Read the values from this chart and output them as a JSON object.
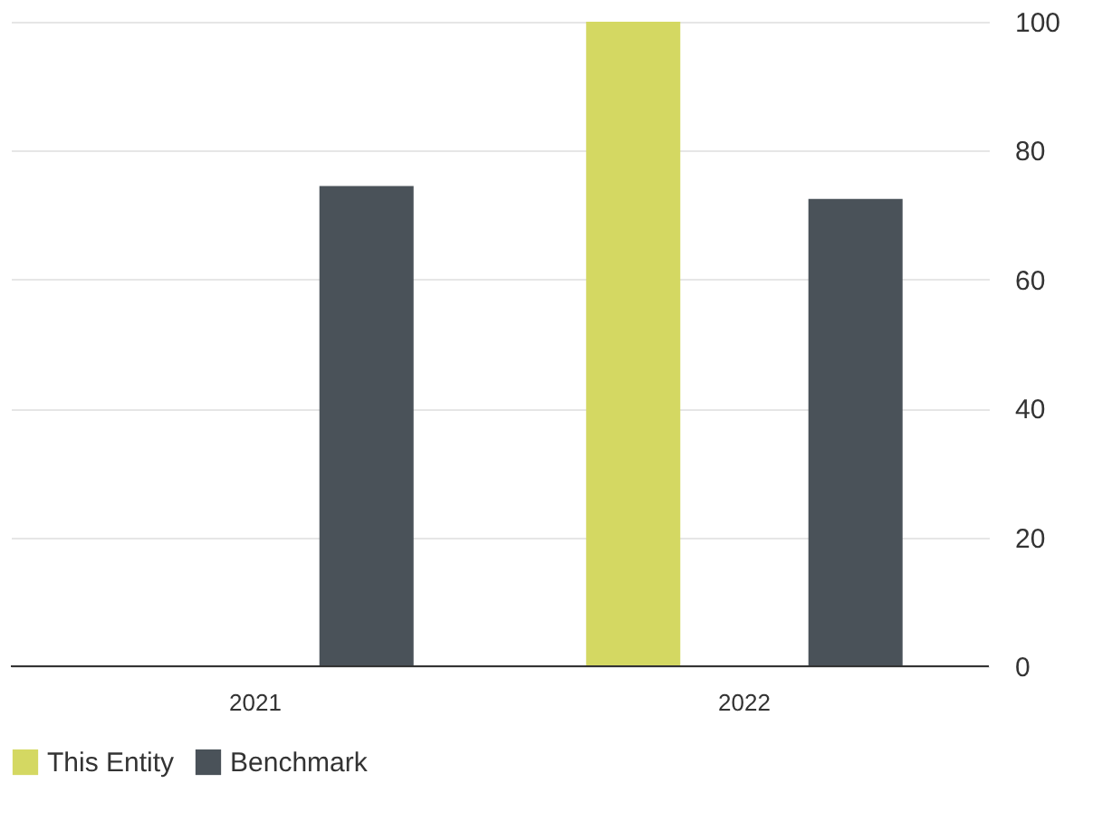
{
  "chart_data": {
    "type": "bar",
    "categories": [
      "2021",
      "2022"
    ],
    "series": [
      {
        "name": "This Entity",
        "color": "#d4d862",
        "values": [
          null,
          100
        ]
      },
      {
        "name": "Benchmark",
        "color": "#4a5259",
        "values": [
          74.5,
          72.5
        ]
      }
    ],
    "ylim": [
      0,
      100
    ],
    "yticks": [
      0,
      20,
      40,
      60,
      80,
      100
    ],
    "grid": "y",
    "legend": "bottom"
  }
}
